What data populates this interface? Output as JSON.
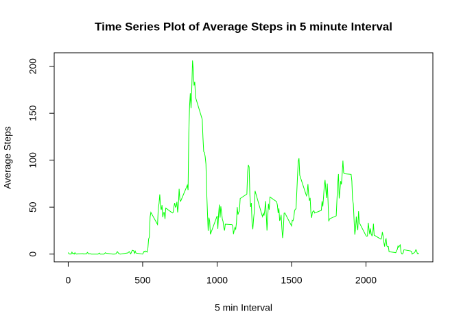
{
  "chart_data": {
    "type": "line",
    "title": "Time Series Plot of Average Steps in 5 minute Interval",
    "x_label": "5 min Interval",
    "y_label": "Average Steps",
    "xlim": [
      -94.2,
      2449.2
    ],
    "ylim": [
      -8.25,
      214.4
    ],
    "xticks": [
      0,
      500,
      1000,
      1500,
      2000
    ],
    "yticks": [
      0,
      50,
      100,
      150,
      200
    ],
    "series": [
      {
        "name": "Average Steps",
        "color": "#00ff00",
        "x": [
          0,
          5,
          10,
          15,
          20,
          25,
          30,
          35,
          40,
          45,
          50,
          55,
          100,
          105,
          110,
          115,
          120,
          125,
          130,
          135,
          140,
          145,
          150,
          155,
          200,
          210,
          215,
          220,
          230,
          240,
          250,
          255,
          300,
          310,
          320,
          330,
          340,
          350,
          400,
          410,
          420,
          430,
          440,
          445,
          450,
          455,
          500,
          505,
          510,
          515,
          520,
          525,
          530,
          535,
          540,
          545,
          550,
          555,
          600,
          605,
          610,
          615,
          620,
          625,
          630,
          635,
          640,
          645,
          650,
          655,
          700,
          705,
          710,
          715,
          720,
          725,
          730,
          735,
          740,
          745,
          750,
          755,
          800,
          805,
          810,
          815,
          820,
          825,
          830,
          835,
          840,
          845,
          850,
          855,
          900,
          905,
          910,
          915,
          920,
          925,
          930,
          935,
          940,
          945,
          950,
          955,
          1000,
          1005,
          1010,
          1015,
          1020,
          1025,
          1030,
          1035,
          1040,
          1045,
          1050,
          1055,
          1100,
          1105,
          1110,
          1115,
          1120,
          1125,
          1130,
          1135,
          1140,
          1145,
          1150,
          1155,
          1200,
          1205,
          1210,
          1215,
          1220,
          1225,
          1230,
          1235,
          1240,
          1245,
          1250,
          1255,
          1300,
          1305,
          1310,
          1315,
          1320,
          1325,
          1330,
          1335,
          1340,
          1345,
          1350,
          1355,
          1400,
          1405,
          1410,
          1415,
          1420,
          1425,
          1430,
          1435,
          1440,
          1445,
          1450,
          1455,
          1500,
          1505,
          1510,
          1515,
          1520,
          1525,
          1530,
          1535,
          1540,
          1545,
          1550,
          1555,
          1600,
          1605,
          1610,
          1615,
          1620,
          1625,
          1630,
          1635,
          1640,
          1645,
          1650,
          1655,
          1700,
          1705,
          1710,
          1715,
          1720,
          1725,
          1730,
          1735,
          1740,
          1745,
          1750,
          1755,
          1800,
          1805,
          1810,
          1815,
          1820,
          1825,
          1830,
          1835,
          1840,
          1845,
          1850,
          1855,
          1900,
          1905,
          1910,
          1915,
          1920,
          1925,
          1930,
          1935,
          1940,
          1945,
          1950,
          1955,
          2000,
          2005,
          2010,
          2015,
          2020,
          2025,
          2030,
          2035,
          2040,
          2045,
          2050,
          2055,
          2100,
          2105,
          2110,
          2115,
          2120,
          2125,
          2130,
          2135,
          2140,
          2145,
          2150,
          2155,
          2200,
          2205,
          2210,
          2215,
          2220,
          2225,
          2230,
          2235,
          2240,
          2245,
          2250,
          2255,
          2300,
          2305,
          2310,
          2315,
          2320,
          2325,
          2330,
          2335,
          2340,
          2345,
          2350,
          2355
        ],
        "values": [
          1.7,
          0.3,
          0.1,
          0.15,
          0.08,
          2.1,
          0.5,
          0.9,
          0,
          1.5,
          0.3,
          0.1,
          0.4,
          0,
          0.2,
          0.3,
          0,
          1.1,
          1.8,
          0.2,
          0.2,
          0.4,
          0.3,
          0,
          0,
          1.1,
          0,
          0,
          0,
          0,
          1.5,
          0.9,
          0,
          0,
          0.2,
          2.6,
          0.5,
          0,
          1.2,
          2.6,
          0.3,
          4.1,
          3.5,
          0.8,
          3.1,
          1.1,
          0,
          1.5,
          3,
          2.2,
          3.3,
          3,
          2.1,
          6.1,
          16,
          18.3,
          39.5,
          44.5,
          31.5,
          49.3,
          53.8,
          63.5,
          50,
          47.1,
          52.2,
          39.3,
          44,
          44.2,
          37.4,
          49,
          43.8,
          44.4,
          50.5,
          54.5,
          49.9,
          50.9,
          55.7,
          44.3,
          52.3,
          69.5,
          57.8,
          56.2,
          73.4,
          68.2,
          129.4,
          157.5,
          171.2,
          155.4,
          177.3,
          206.2,
          195.9,
          179.6,
          183.4,
          167,
          143.5,
          124,
          109.1,
          108.1,
          103.7,
          95.97,
          66.2,
          45.2,
          24.8,
          38.8,
          35,
          21.1,
          40.6,
          26.9,
          42.4,
          52.7,
          38.9,
          50.8,
          44.3,
          37.4,
          34.7,
          28.3,
          25.1,
          31.9,
          31.4,
          29.7,
          21.3,
          25.5,
          28.4,
          26.5,
          33.4,
          50,
          42,
          44.6,
          46,
          59.2,
          63.9,
          87.7,
          94.8,
          92.8,
          63.4,
          50.2,
          54.5,
          32.4,
          26.5,
          37.7,
          45.1,
          67.3,
          42.3,
          39.9,
          43.3,
          40.98,
          46.2,
          56.4,
          42.8,
          25.1,
          40,
          53.5,
          47.3,
          60.8,
          55.8,
          51.96,
          43.6,
          48.7,
          35.5,
          37.5,
          41.8,
          27.5,
          17.1,
          26.1,
          43.6,
          43.8,
          30,
          36.1,
          35.5,
          38.8,
          45.96,
          47.8,
          48.1,
          65.3,
          82.9,
          98.7,
          102.1,
          84,
          62.1,
          64.1,
          74.5,
          63.2,
          56.9,
          59.8,
          43.9,
          38.6,
          44.7,
          45.5,
          46.2,
          43.7,
          46.6,
          56.3,
          50.7,
          61.2,
          72.7,
          78.9,
          68.9,
          59.7,
          75.1,
          56.5,
          34.8,
          37.5,
          40.7,
          58,
          74.7,
          85.3,
          59.3,
          67.8,
          77.7,
          74.2,
          85.3,
          99.5,
          86.6,
          85.6,
          84.9,
          77.8,
          58,
          53.4,
          36.3,
          20.7,
          27.4,
          40,
          30.2,
          25.5,
          45.7,
          33.5,
          19.6,
          19,
          19.3,
          33.3,
          26.8,
          21.2,
          27.3,
          21.3,
          19.5,
          21.3,
          32.3,
          20.2,
          15.9,
          17.2,
          23.5,
          19.2,
          12.5,
          8,
          14.7,
          16.3,
          8.7,
          7.8,
          8.1,
          2.6,
          1.5,
          3.7,
          4.8,
          8.5,
          7.1,
          8.7,
          9.8,
          2.2,
          0.3,
          0.1,
          1.6,
          4.6,
          3.3,
          2.8,
          0,
          0.8,
          1,
          1.6,
          2.6,
          4.7,
          3.3,
          0.6,
          0.2,
          1.1
        ]
      }
    ]
  }
}
